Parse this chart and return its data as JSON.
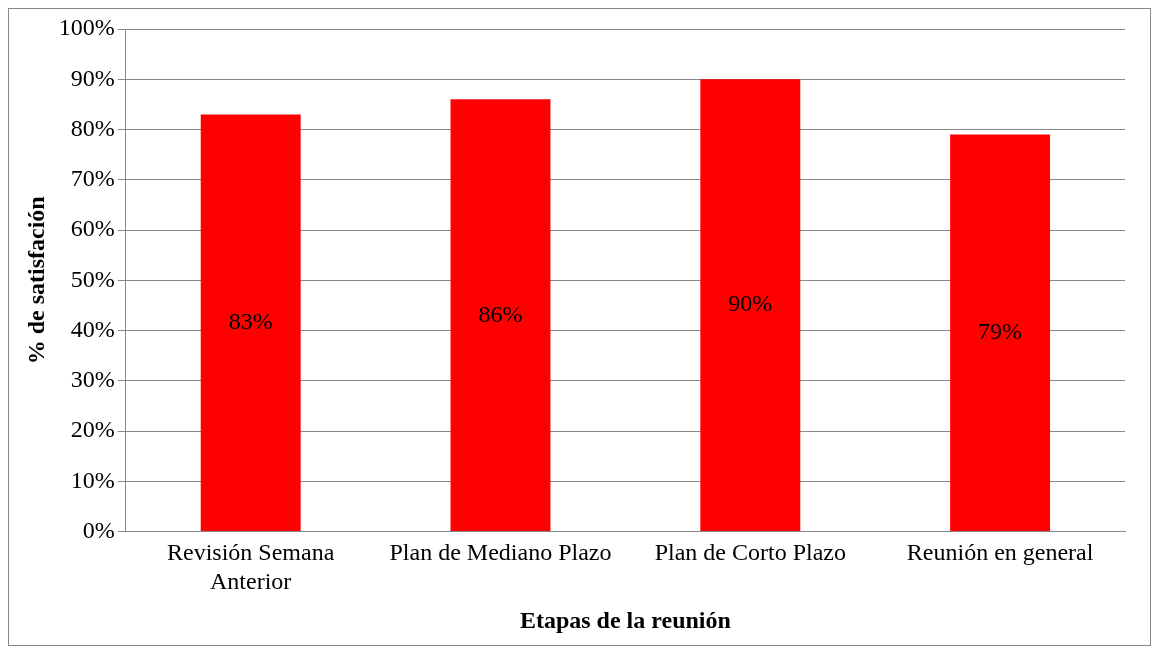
{
  "chart_data": {
    "type": "bar",
    "xlabel": "Etapas de la reunión",
    "ylabel": "% de satisfación",
    "categories": [
      "Revisión Semana Anterior",
      "Plan de Mediano Plazo",
      "Plan de Corto Plazo",
      "Reunión en general"
    ],
    "values": [
      83,
      86,
      90,
      79
    ],
    "value_labels": [
      "83%",
      "86%",
      "90%",
      "79%"
    ],
    "color": "#ff0000",
    "ylim": [
      0,
      100
    ],
    "yticks": [
      {
        "value": 0,
        "label": "0%"
      },
      {
        "value": 10,
        "label": "10%"
      },
      {
        "value": 20,
        "label": "20%"
      },
      {
        "value": 30,
        "label": "30%"
      },
      {
        "value": 40,
        "label": "40%"
      },
      {
        "value": 50,
        "label": "50%"
      },
      {
        "value": 60,
        "label": "60%"
      },
      {
        "value": 70,
        "label": "70%"
      },
      {
        "value": 80,
        "label": "80%"
      },
      {
        "value": 90,
        "label": "90%"
      },
      {
        "value": 100,
        "label": "100%"
      }
    ],
    "grid": "y",
    "legend": false
  }
}
